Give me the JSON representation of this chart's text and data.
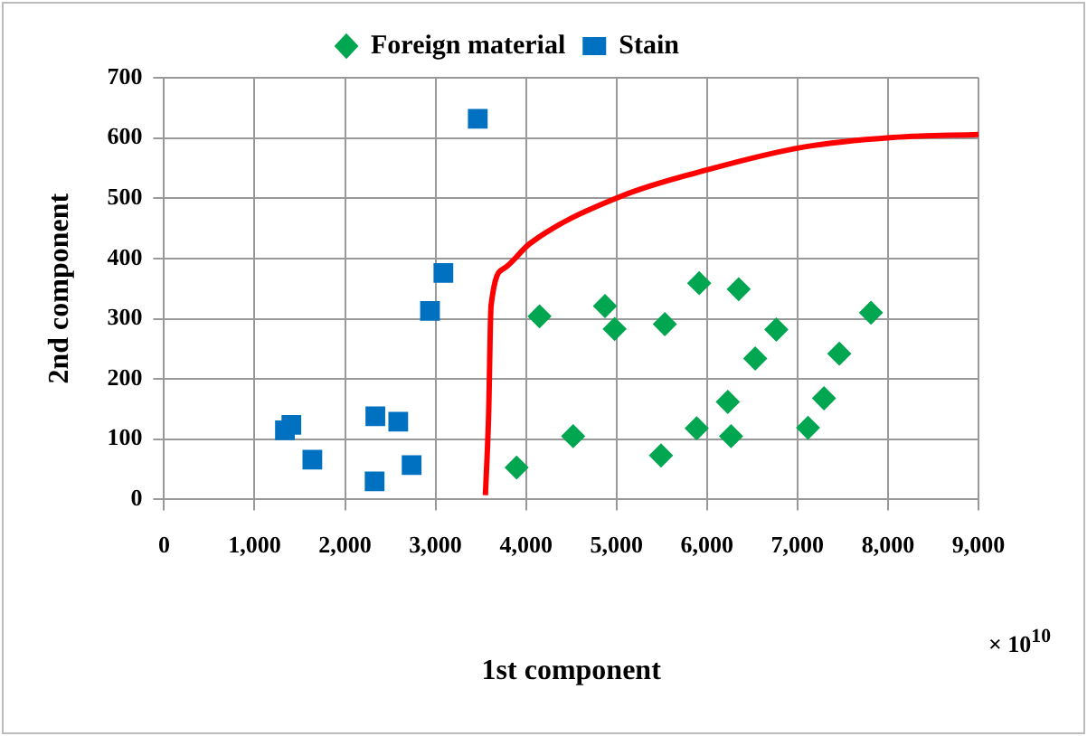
{
  "chart_data": {
    "type": "scatter",
    "xlabel": "1st component",
    "ylabel": "2nd component",
    "annotations": [
      "× 10$^{10}$"
    ],
    "xlim": [
      0,
      9000
    ],
    "xticks": [
      {
        "value": 0,
        "label": "0"
      },
      {
        "value": 1000,
        "label": "1,000"
      },
      {
        "value": 2000,
        "label": "2,000"
      },
      {
        "value": 3000,
        "label": "3,000"
      },
      {
        "value": 4000,
        "label": "4,000"
      },
      {
        "value": 5000,
        "label": "5,000"
      },
      {
        "value": 6000,
        "label": "6,000"
      },
      {
        "value": 7000,
        "label": "7,000"
      },
      {
        "value": 8000,
        "label": "8,000"
      },
      {
        "value": 9000,
        "label": "9,000"
      }
    ],
    "ylim": [
      0,
      700
    ],
    "yticks": [
      0,
      100,
      200,
      300,
      400,
      500,
      600,
      700
    ],
    "grid": true,
    "legend": "top",
    "series": [
      {
        "name": "Foreign material",
        "color": "#00a650",
        "marker": "diamond",
        "x": [
          3896,
          4149,
          4521,
          4873,
          4979,
          5492,
          5534,
          5914,
          5886,
          6350,
          6230,
          6266,
          6533,
          6766,
          7116,
          7293,
          7462,
          7812
        ],
        "values": [
          53,
          304,
          105,
          321,
          283,
          73,
          291,
          359,
          118,
          349,
          162,
          105,
          234,
          282,
          119,
          168,
          242,
          310
        ]
      },
      {
        "name": "Stain",
        "color": "#0070c0",
        "marker": "square",
        "x": [
          1407,
          1336,
          1639,
          2335,
          2588,
          2327,
          2736,
          2939,
          3087,
          3467
        ],
        "values": [
          124,
          115,
          66,
          138,
          129,
          30,
          57,
          313,
          376,
          632
        ]
      },
      {
        "type": "line",
        "color": "#ff0000",
        "marker": "none",
        "x": [
          3551,
          3586,
          3614,
          3762,
          4044,
          5028,
          6047,
          7068,
          8052,
          9000
        ],
        "values": [
          7,
          136,
          322,
          384,
          425,
          502,
          549,
          585,
          601,
          606
        ]
      }
    ]
  }
}
